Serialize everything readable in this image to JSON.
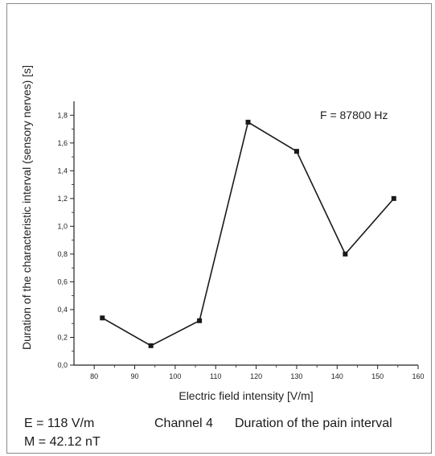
{
  "chart_data": {
    "type": "line",
    "x": [
      82,
      94,
      106,
      118,
      130,
      142,
      154
    ],
    "series": [
      {
        "values": [
          0.34,
          0.14,
          0.32,
          1.75,
          1.54,
          0.8,
          1.2
        ]
      }
    ],
    "xlabel": "Electric field intensity [V/m]",
    "ylabel": "Duration of the characteristic interval (sensory nerves) [s]",
    "xlim": [
      75,
      160
    ],
    "ylim": [
      0.0,
      1.9
    ],
    "xticks": [
      "80",
      "90",
      "100",
      "110",
      "120",
      "130",
      "140",
      "150",
      "160"
    ],
    "yticks": [
      "0,0",
      "0,2",
      "0,4",
      "0,6",
      "0,8",
      "1,0",
      "1,2",
      "1,4",
      "1,6",
      "1,8"
    ],
    "annotation": "F = 87800 Hz",
    "grid": false,
    "line_color": "#1a1a1a"
  },
  "caption": {
    "line1_e": "E = 118 V/m",
    "line1_channel": "Channel 4",
    "line1_duration": "Duration of the pain interval",
    "line2": "M = 42.12 nT"
  }
}
